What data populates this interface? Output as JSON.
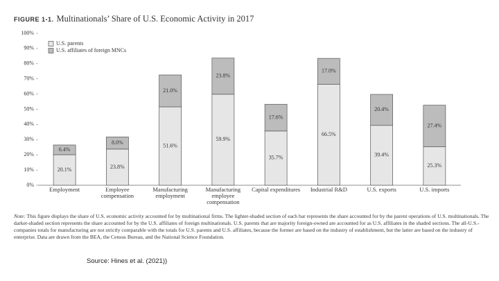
{
  "figure_label": "FIGURE 1-1.",
  "chart_data": {
    "type": "stacked_bar",
    "title": "Multinationals’ Share of U.S. Economic Activity in 2017",
    "categories": [
      "Employment",
      "Employee compensation",
      "Manufacturing employment",
      "Manufacturing employee compensation",
      "Capital expenditures",
      "Industrial R&D",
      "U.S. exports",
      "U.S. imports"
    ],
    "series": [
      {
        "name": "U.S. parents",
        "color": "#e6e6e6",
        "values": [
          20.1,
          23.8,
          51.6,
          59.9,
          35.7,
          66.5,
          39.4,
          25.3
        ],
        "value_labels": [
          "20.1%",
          "23.8%",
          "51.6%",
          "59.9%",
          "35.7%",
          "66.5%",
          "39.4%",
          "25.3%"
        ]
      },
      {
        "name": "U.S. affiliates of foreign MNCs",
        "color": "#bcbcbc",
        "values": [
          6.4,
          8.0,
          21.0,
          23.8,
          17.6,
          17.0,
          20.4,
          27.4
        ],
        "value_labels": [
          "6.4%",
          "8.0%",
          "21.0%",
          "23.8%",
          "17.6%",
          "17.0%",
          "20.4%",
          "27.4%"
        ]
      }
    ],
    "ylim": [
      0,
      100
    ],
    "yticks": [
      {
        "value": 0,
        "label": "0%"
      },
      {
        "value": 10,
        "label": "10%"
      },
      {
        "value": 20,
        "label": "20%"
      },
      {
        "value": 30,
        "label": "30%"
      },
      {
        "value": 40,
        "label": "40%"
      },
      {
        "value": 50,
        "label": "50%"
      },
      {
        "value": 60,
        "label": "60%"
      },
      {
        "value": 70,
        "label": "70%"
      },
      {
        "value": 80,
        "label": "80%"
      },
      {
        "value": 90,
        "label": "90%"
      },
      {
        "value": 100,
        "label": "100%"
      }
    ],
    "grid": false,
    "legend": "top-left"
  },
  "note_label": "Note:",
  "note": "This figure displays the share of U.S. economic activity accounted for by multinational firms. The lighter-shaded section of each bar represents the share accounted for by the parent operations of U.S. multinationals. The darker-shaded section represents the share accounted for by the U.S. affiliates of foreign multinationals. U.S. parents that are majority foreign-owned are accounted for as U.S. affiliates in the shaded sections. The all-U.S.-companies totals for manufacturing are not strictly comparable with the totals for U.S. parents and U.S. affiliates, because the former are based on the industry of establishment, but the latter are based on the industry of enterprise. Data are drawn from the BEA, the Census Bureau, and the National Science Foundation.",
  "source": "Source: Hines et al. (2021))"
}
